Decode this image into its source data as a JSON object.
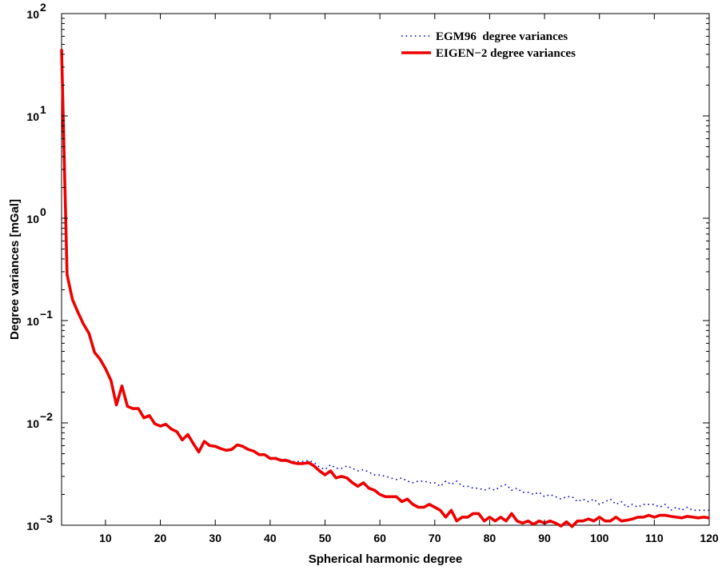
{
  "chart_data": {
    "type": "line",
    "xlabel": "Spherical harmonic degree",
    "ylabel": "Degree variances [mGal]",
    "xlim": [
      2,
      120
    ],
    "ylim": [
      0.001,
      100
    ],
    "yscale": "log",
    "grid": false,
    "legend_position": "top-right",
    "x_ticks": [
      10,
      20,
      30,
      40,
      50,
      60,
      70,
      80,
      90,
      100,
      110,
      120
    ],
    "x_tick_labels": [
      "10",
      "20",
      "30",
      "40",
      "50",
      "60",
      "70",
      "80",
      "90",
      "100",
      "110",
      "120"
    ],
    "y_ticks": [
      0.001,
      0.01,
      0.1,
      1,
      10,
      100
    ],
    "y_tick_labels": [
      {
        "base": "10",
        "exp": "−3"
      },
      {
        "base": "10",
        "exp": "−2"
      },
      {
        "base": "10",
        "exp": "−1"
      },
      {
        "base": "10",
        "exp": "0"
      },
      {
        "base": "10",
        "exp": "1"
      },
      {
        "base": "10",
        "exp": "2"
      }
    ],
    "series": [
      {
        "name": "EGM96  degree variances",
        "color": "#0000cc",
        "style": "dotted",
        "x": [
          2,
          3,
          4,
          5,
          6,
          7,
          8,
          9,
          10,
          11,
          12,
          13,
          14,
          15,
          16,
          17,
          18,
          19,
          20,
          21,
          22,
          23,
          24,
          25,
          26,
          27,
          28,
          29,
          30,
          31,
          32,
          33,
          34,
          35,
          36,
          37,
          38,
          39,
          40,
          41,
          42,
          43,
          44,
          45,
          46,
          47,
          48,
          49,
          50,
          51,
          52,
          53,
          54,
          55,
          56,
          57,
          58,
          59,
          60,
          61,
          62,
          63,
          64,
          65,
          66,
          67,
          68,
          69,
          70,
          71,
          72,
          73,
          74,
          75,
          76,
          77,
          78,
          79,
          80,
          81,
          82,
          83,
          84,
          85,
          86,
          87,
          88,
          89,
          90,
          91,
          92,
          93,
          94,
          95,
          96,
          97,
          98,
          99,
          100,
          101,
          102,
          103,
          104,
          105,
          106,
          107,
          108,
          109,
          110,
          111,
          112,
          113,
          114,
          115,
          116,
          117,
          118,
          119,
          120
        ],
        "values": [
          45,
          0.28,
          0.16,
          0.12,
          0.092,
          0.075,
          0.049,
          0.042,
          0.034,
          0.026,
          0.015,
          0.023,
          0.0145,
          0.0138,
          0.0138,
          0.0112,
          0.0118,
          0.0098,
          0.0093,
          0.0097,
          0.0087,
          0.0082,
          0.0068,
          0.0077,
          0.0063,
          0.0052,
          0.0066,
          0.006,
          0.0059,
          0.0056,
          0.0054,
          0.0055,
          0.0061,
          0.0059,
          0.0055,
          0.0053,
          0.0049,
          0.0049,
          0.0045,
          0.0046,
          0.0044,
          0.0044,
          0.0042,
          0.0042,
          0.0042,
          0.0043,
          0.0041,
          0.0037,
          0.0035,
          0.0039,
          0.0036,
          0.0036,
          0.0038,
          0.0036,
          0.0034,
          0.0035,
          0.0033,
          0.0031,
          0.0031,
          0.003,
          0.0029,
          0.0028,
          0.0029,
          0.0027,
          0.0026,
          0.0027,
          0.0027,
          0.0026,
          0.0026,
          0.0024,
          0.0027,
          0.0025,
          0.0027,
          0.0024,
          0.0024,
          0.0023,
          0.0023,
          0.0022,
          0.0023,
          0.0022,
          0.0024,
          0.0025,
          0.0022,
          0.0023,
          0.0021,
          0.0021,
          0.002,
          0.0021,
          0.0019,
          0.002,
          0.0019,
          0.0018,
          0.0019,
          0.0019,
          0.0017,
          0.0018,
          0.0017,
          0.0018,
          0.0016,
          0.0017,
          0.0018,
          0.0016,
          0.0017,
          0.0015,
          0.0016,
          0.0015,
          0.0016,
          0.0016,
          0.0016,
          0.0015,
          0.0016,
          0.0014,
          0.0015,
          0.0014,
          0.0015,
          0.0014,
          0.0014,
          0.0014,
          0.0014
        ]
      },
      {
        "name": "EIGEN−2 degree variances",
        "color": "#ee0000",
        "style": "solid",
        "x": [
          2,
          3,
          4,
          5,
          6,
          7,
          8,
          9,
          10,
          11,
          12,
          13,
          14,
          15,
          16,
          17,
          18,
          19,
          20,
          21,
          22,
          23,
          24,
          25,
          26,
          27,
          28,
          29,
          30,
          31,
          32,
          33,
          34,
          35,
          36,
          37,
          38,
          39,
          40,
          41,
          42,
          43,
          44,
          45,
          46,
          47,
          48,
          49,
          50,
          51,
          52,
          53,
          54,
          55,
          56,
          57,
          58,
          59,
          60,
          61,
          62,
          63,
          64,
          65,
          66,
          67,
          68,
          69,
          70,
          71,
          72,
          73,
          74,
          75,
          76,
          77,
          78,
          79,
          80,
          81,
          82,
          83,
          84,
          85,
          86,
          87,
          88,
          89,
          90,
          91,
          92,
          93,
          94,
          95,
          96,
          97,
          98,
          99,
          100,
          101,
          102,
          103,
          104,
          105,
          106,
          107,
          108,
          109,
          110,
          111,
          112,
          113,
          114,
          115,
          116,
          117,
          118,
          119,
          120
        ],
        "values": [
          45,
          0.28,
          0.16,
          0.12,
          0.092,
          0.075,
          0.049,
          0.042,
          0.034,
          0.026,
          0.015,
          0.023,
          0.0145,
          0.0138,
          0.0138,
          0.0112,
          0.0118,
          0.0098,
          0.0093,
          0.0097,
          0.0087,
          0.0082,
          0.0068,
          0.0077,
          0.0063,
          0.0052,
          0.0066,
          0.006,
          0.0059,
          0.0056,
          0.0054,
          0.0055,
          0.0061,
          0.0059,
          0.0055,
          0.0053,
          0.0049,
          0.0049,
          0.0045,
          0.0045,
          0.0043,
          0.0043,
          0.0041,
          0.004,
          0.004,
          0.0041,
          0.0038,
          0.0034,
          0.0031,
          0.0034,
          0.0029,
          0.003,
          0.0029,
          0.0026,
          0.0024,
          0.0026,
          0.0023,
          0.0022,
          0.002,
          0.0019,
          0.0019,
          0.0019,
          0.0017,
          0.0018,
          0.0016,
          0.0015,
          0.0015,
          0.0016,
          0.0015,
          0.0014,
          0.0012,
          0.0014,
          0.0011,
          0.0012,
          0.0012,
          0.0013,
          0.0013,
          0.0011,
          0.0012,
          0.0011,
          0.0012,
          0.0011,
          0.0013,
          0.0011,
          0.00105,
          0.0011,
          0.00102,
          0.0011,
          0.00105,
          0.0011,
          0.00105,
          0.00098,
          0.00108,
          0.00097,
          0.0011,
          0.0011,
          0.00115,
          0.0011,
          0.0012,
          0.0011,
          0.0011,
          0.0012,
          0.0011,
          0.00112,
          0.00115,
          0.0012,
          0.0012,
          0.00125,
          0.0012,
          0.00125,
          0.00125,
          0.00122,
          0.0012,
          0.00118,
          0.00122,
          0.0012,
          0.00118,
          0.0012,
          0.00118
        ]
      }
    ]
  }
}
